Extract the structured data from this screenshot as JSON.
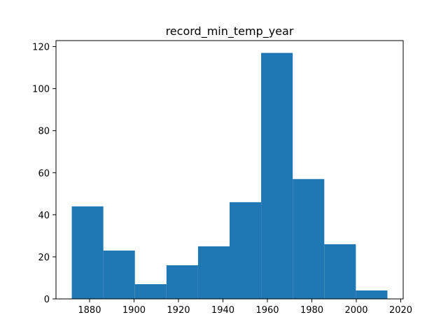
{
  "chart_data": {
    "type": "bar",
    "subtype": "histogram",
    "title": "record_min_temp_year",
    "xlabel": "",
    "ylabel": "",
    "bins": [
      {
        "x0": 1872.0,
        "x1": 1886.2,
        "count": 44
      },
      {
        "x0": 1886.2,
        "x1": 1900.4,
        "count": 23
      },
      {
        "x0": 1900.4,
        "x1": 1914.6,
        "count": 7
      },
      {
        "x0": 1914.6,
        "x1": 1928.8,
        "count": 16
      },
      {
        "x0": 1928.8,
        "x1": 1943.0,
        "count": 25
      },
      {
        "x0": 1943.0,
        "x1": 1957.2,
        "count": 46
      },
      {
        "x0": 1957.2,
        "x1": 1971.4,
        "count": 117
      },
      {
        "x0": 1971.4,
        "x1": 1985.6,
        "count": 57
      },
      {
        "x0": 1985.6,
        "x1": 1999.8,
        "count": 26
      },
      {
        "x0": 1999.8,
        "x1": 2014.0,
        "count": 4
      }
    ],
    "xlim": [
      1864.9,
      2021.1
    ],
    "ylim": [
      0,
      122.85
    ],
    "x_ticks": [
      1880,
      1900,
      1920,
      1940,
      1960,
      1980,
      2000,
      2020
    ],
    "y_ticks": [
      0,
      20,
      40,
      60,
      80,
      100,
      120
    ],
    "bar_color": "#1f77b4",
    "grid": false,
    "legend": "none"
  }
}
